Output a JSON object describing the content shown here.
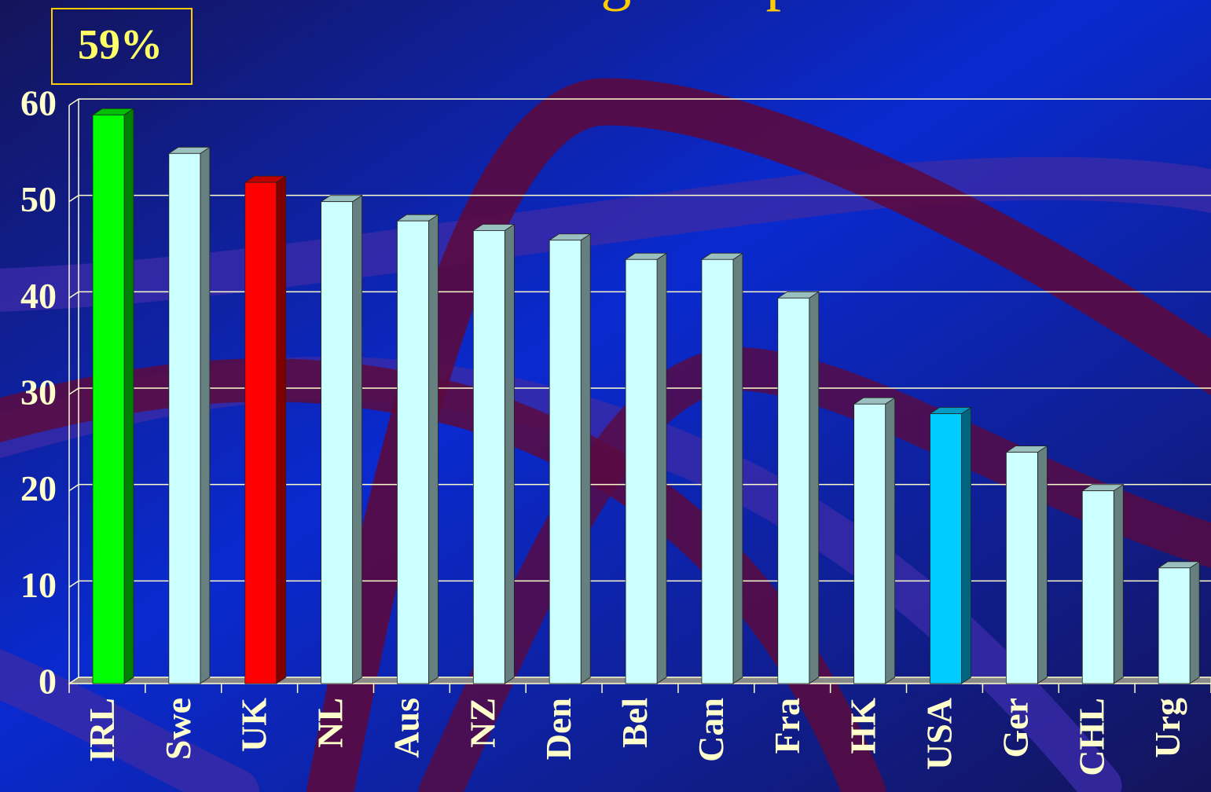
{
  "chart_data": {
    "type": "bar3d",
    "title": "a functioning transplant",
    "annotation": "59%",
    "categories": [
      "IRL",
      "Swe",
      "UK",
      "NL",
      "Aus",
      "NZ",
      "Den",
      "Bel",
      "Can",
      "Fra",
      "HK",
      "USA",
      "Ger",
      "CHL",
      "Urg"
    ],
    "values": [
      59,
      55,
      52,
      50,
      48,
      47,
      46,
      44,
      44,
      40,
      29,
      28,
      24,
      20,
      12
    ],
    "colors": [
      "#00ff00",
      "#ccffff",
      "#ff0000",
      "#ccffff",
      "#ccffff",
      "#ccffff",
      "#ccffff",
      "#ccffff",
      "#ccffff",
      "#ccffff",
      "#ccffff",
      "#00ccff",
      "#ccffff",
      "#ccffff",
      "#ccffff"
    ],
    "ylim": [
      0,
      60
    ],
    "yticks": [
      0,
      10,
      20,
      30,
      40,
      50,
      60
    ],
    "grid": true
  }
}
